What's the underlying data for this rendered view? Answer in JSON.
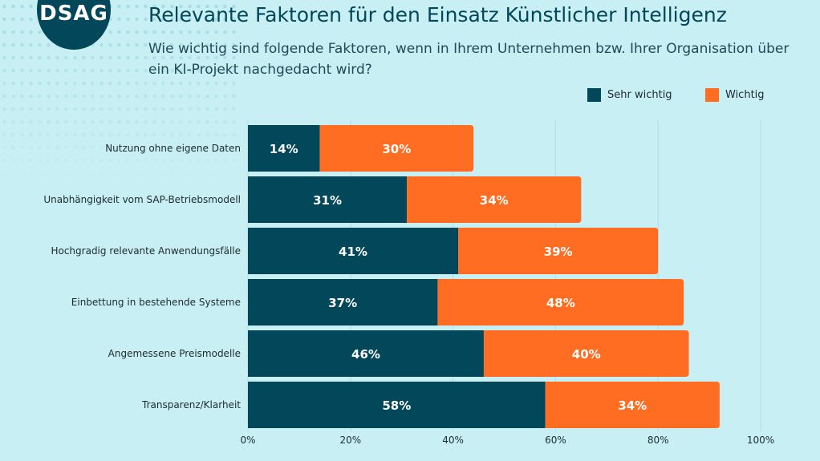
{
  "logo": "DSAG",
  "title": "Relevante Faktoren für den Einsatz Künstlicher Intelligenz",
  "subtitle": "Wie wichtig sind folgende Faktoren, wenn in Ihrem Unternehmen bzw. Ihrer Organisation über ein KI-Projekt nachgedacht wird?",
  "colors": {
    "background": "#c8eff3",
    "sehr_wichtig": "#02475a",
    "wichtig": "#ff6d22"
  },
  "chart_data": {
    "type": "bar",
    "orientation": "horizontal",
    "stacked": true,
    "categories": [
      "Nutzung ohne eigene Daten",
      "Unabhängigkeit vom SAP-Betriebsmodell",
      "Hochgradig relevante Anwendungsfälle",
      "Einbettung in bestehende Systeme",
      "Angemessene Preismodelle",
      "Transparenz/Klarheit"
    ],
    "series": [
      {
        "name": "Sehr wichtig",
        "values": [
          14,
          31,
          41,
          37,
          46,
          58
        ],
        "labels": [
          "14%",
          "31%",
          "41%",
          "37%",
          "46%",
          "58%"
        ]
      },
      {
        "name": "Wichtig",
        "values": [
          30,
          34,
          39,
          48,
          40,
          34
        ],
        "labels": [
          "30%",
          "34%",
          "39%",
          "48%",
          "40%",
          "34%"
        ]
      }
    ],
    "xlim": [
      0,
      100
    ],
    "xticks": [
      "0%",
      "20%",
      "40%",
      "60%",
      "80%",
      "100%"
    ],
    "grid": true,
    "legend": "top-right"
  }
}
